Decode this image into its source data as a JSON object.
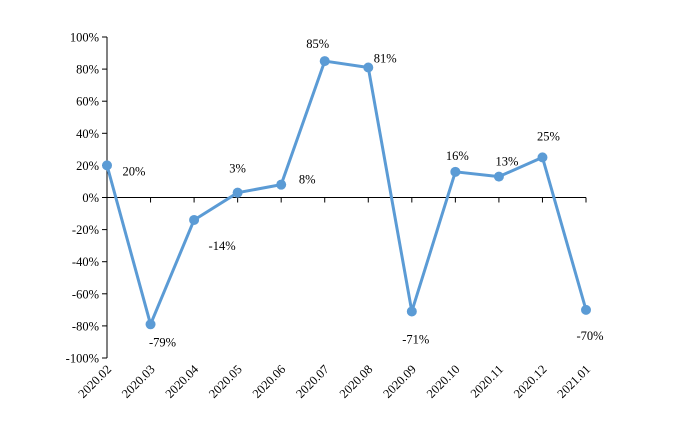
{
  "chart_data": {
    "type": "line",
    "categories": [
      "2020.02",
      "2020.03",
      "2020.04",
      "2020.05",
      "2020.06",
      "2020.07",
      "2020.08",
      "2020.09",
      "2020.10",
      "2020.11",
      "2020.12",
      "2021.01"
    ],
    "series": [
      {
        "values": [
          20,
          -79,
          -14,
          3,
          8,
          85,
          81,
          -71,
          16,
          13,
          25,
          -70
        ],
        "data_labels": [
          "20%",
          "-79%",
          "-14%",
          "3%",
          "8%",
          "85%",
          "81%",
          "-71%",
          "16%",
          "13%",
          "25%",
          "-70%"
        ],
        "color": "#5b9bd5"
      }
    ],
    "y_ticks": [
      "100%",
      "80%",
      "60%",
      "40%",
      "20%",
      "0%",
      "-20%",
      "-40%",
      "-60%",
      "-80%",
      "-100%"
    ],
    "ylim": [
      -100,
      100
    ],
    "title": "",
    "xlabel": "",
    "ylabel": "",
    "grid": false,
    "legend": "none"
  }
}
